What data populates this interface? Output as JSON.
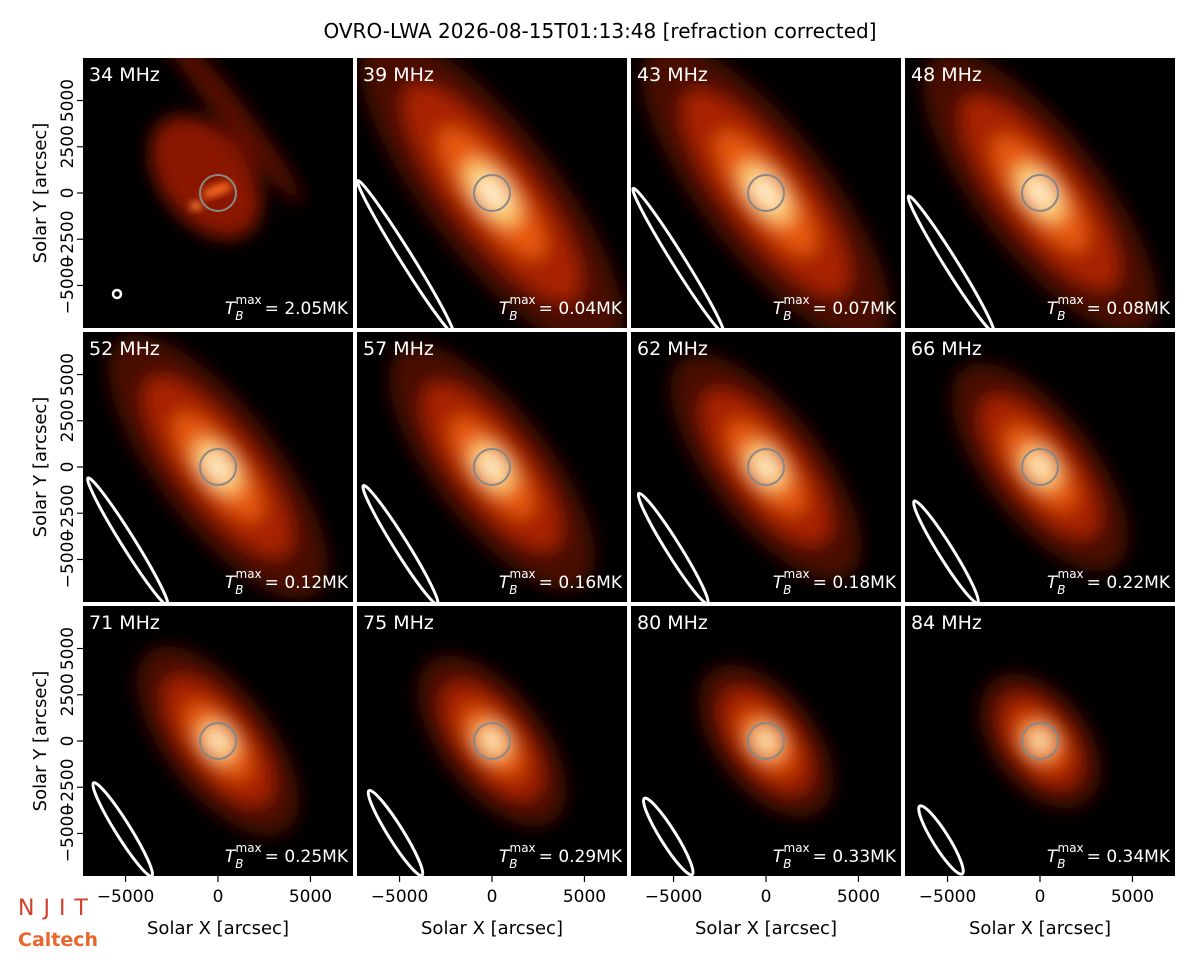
{
  "chart_data": {
    "type": "image",
    "title": "OVRO-LWA 2026-08-15T01:13:48 [refraction corrected]",
    "xlabel": "Solar X [arcsec]",
    "ylabel": "Solar Y [arcsec]",
    "xlim": [
      -7300,
      7300
    ],
    "ylim": [
      -7300,
      7300
    ],
    "xticks": [
      {
        "value": -5000,
        "label": "−5000"
      },
      0,
      5000
    ],
    "yticks": [
      {
        "value": -5000,
        "label": "−5000"
      },
      {
        "value": -2500,
        "label": "−2500"
      },
      0,
      2500,
      5000
    ],
    "categories": [
      "34 MHz",
      "39 MHz",
      "43 MHz",
      "48 MHz",
      "52 MHz",
      "57 MHz",
      "62 MHz",
      "66 MHz",
      "71 MHz",
      "75 MHz",
      "80 MHz",
      "84 MHz"
    ],
    "tb_symbol": "T",
    "tb_sub": "B",
    "tb_sup": "max",
    "values": [
      2.05,
      0.04,
      0.07,
      0.08,
      0.12,
      0.16,
      0.18,
      0.22,
      0.25,
      0.29,
      0.33,
      0.34
    ],
    "value_labels": [
      "= 2.05MK",
      "= 0.04MK",
      "= 0.07MK",
      "= 0.08MK",
      "= 0.12MK",
      "= 0.16MK",
      "= 0.18MK",
      "= 0.22MK",
      "= 0.25MK",
      "= 0.29MK",
      "= 0.33MK",
      "= 0.34MK"
    ],
    "logos": [
      "NJIT",
      "Caltech"
    ]
  }
}
